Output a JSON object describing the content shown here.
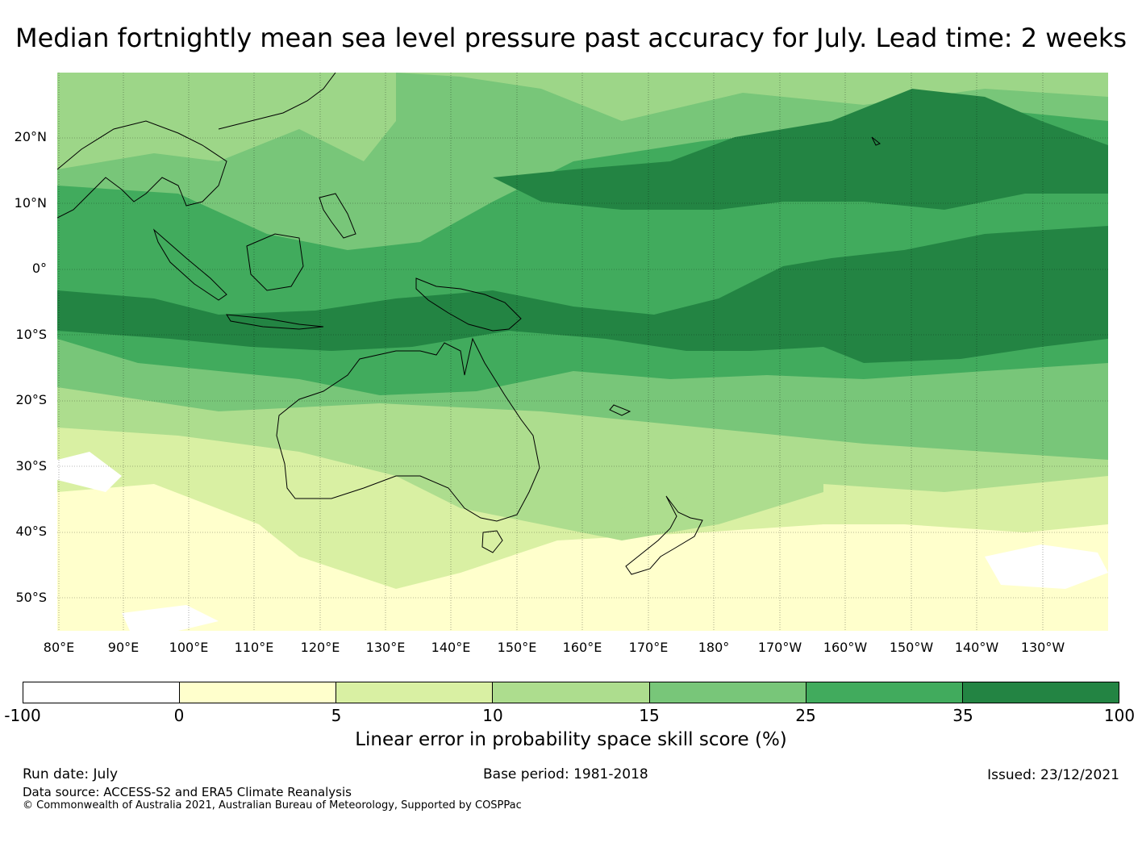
{
  "title": "Median fortnightly mean sea level pressure past accuracy for July. Lead time: 2 weeks",
  "map": {
    "lat_labels": [
      "20°N",
      "10°N",
      "0°",
      "10°S",
      "20°S",
      "30°S",
      "40°S",
      "50°S"
    ],
    "lon_labels": [
      "80°E",
      "90°E",
      "100°E",
      "110°E",
      "120°E",
      "130°E",
      "140°E",
      "150°E",
      "160°E",
      "170°E",
      "180°",
      "170°W",
      "160°W",
      "150°W",
      "140°W",
      "130°W"
    ],
    "lat_values": [
      20,
      10,
      0,
      -10,
      -20,
      -30,
      -40,
      -50
    ],
    "lon_values": [
      80,
      90,
      100,
      110,
      120,
      130,
      140,
      150,
      160,
      170,
      180,
      190,
      200,
      210,
      220,
      230
    ],
    "lat_range": [
      -55,
      30
    ],
    "lon_range": [
      80,
      240
    ],
    "grid": true
  },
  "colorbar": {
    "label": "Linear error in probability space skill score (%)",
    "ticks": [
      "-100",
      "0",
      "5",
      "10",
      "15",
      "25",
      "35",
      "100"
    ],
    "colors": [
      "#ffffff",
      "#ffffcc",
      "#d9f0a3",
      "#addd8e",
      "#78c679",
      "#41ab5d",
      "#238443"
    ]
  },
  "footer": {
    "run_date": "Run date: July",
    "base_period": "Base period: 1981-2018",
    "issued": "Issued: 23/12/2021",
    "data_source": "Data source: ACCESS-S2 and ERA5 Climate Reanalysis",
    "copyright": "© Commonwealth of Australia 2021, Australian Bureau of Meteorology, Supported by COSPPac"
  }
}
